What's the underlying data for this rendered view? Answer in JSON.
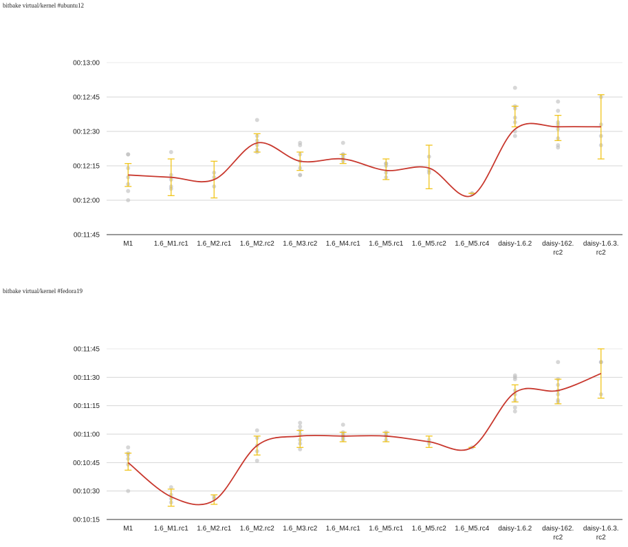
{
  "charts": [
    {
      "title": "bitbake virtual/kernel #ubuntu12"
    },
    {
      "title": "bitbake virtual/kernel #fedora19"
    }
  ],
  "chart_data": [
    {
      "type": "line",
      "title": "bitbake virtual/kernel #ubuntu12",
      "categories": [
        [
          "M1"
        ],
        [
          "1.6_M1.rc1"
        ],
        [
          "1.6_M2.rc1"
        ],
        [
          "1.6_M2.rc2"
        ],
        [
          "1.6_M3.rc2"
        ],
        [
          "1.6_M4.rc1"
        ],
        [
          "1.6_M5.rc1"
        ],
        [
          "1.6_M5.rc2"
        ],
        [
          "1.6_M5.rc4"
        ],
        [
          "daisy-1.6.2"
        ],
        [
          "daisy-162.",
          "rc2"
        ],
        [
          "daisy-1.6.3.",
          "rc2"
        ]
      ],
      "y_ticks": [
        "00:11:45",
        "00:12:00",
        "00:12:15",
        "00:12:30",
        "00:12:45",
        "00:13:00"
      ],
      "ylim": [
        705,
        780
      ],
      "grid": true,
      "series": [
        {
          "type": "line",
          "color": "#c8372d",
          "values": [
            731,
            730,
            729,
            745,
            737,
            738,
            733,
            734,
            722,
            751,
            752,
            752
          ]
        },
        {
          "type": "errorbar",
          "color": "#f0c419",
          "low": [
            726,
            722,
            721,
            741,
            733,
            736,
            729,
            725,
            723,
            752,
            746,
            738
          ],
          "high": [
            736,
            738,
            737,
            749,
            741,
            740,
            738,
            744,
            723,
            761,
            757,
            766
          ]
        },
        {
          "type": "scatter",
          "color": "#bdbdbd",
          "points": [
            [
              0,
              720
            ],
            [
              0,
              724
            ],
            [
              0,
              727
            ],
            [
              0,
              730
            ],
            [
              0,
              734
            ],
            [
              0,
              740
            ],
            [
              0,
              740
            ],
            [
              1,
              725
            ],
            [
              1,
              726
            ],
            [
              1,
              729
            ],
            [
              1,
              731
            ],
            [
              1,
              741
            ],
            [
              2,
              726
            ],
            [
              2,
              730
            ],
            [
              2,
              732
            ],
            [
              3,
              741
            ],
            [
              3,
              742
            ],
            [
              3,
              744
            ],
            [
              3,
              746
            ],
            [
              3,
              748
            ],
            [
              3,
              755
            ],
            [
              4,
              731
            ],
            [
              4,
              731
            ],
            [
              4,
              734
            ],
            [
              4,
              737
            ],
            [
              4,
              740
            ],
            [
              4,
              744
            ],
            [
              4,
              745
            ],
            [
              5,
              737
            ],
            [
              5,
              738
            ],
            [
              5,
              739
            ],
            [
              5,
              740
            ],
            [
              5,
              740
            ],
            [
              5,
              745
            ],
            [
              6,
              730
            ],
            [
              6,
              732
            ],
            [
              6,
              735
            ],
            [
              6,
              736
            ],
            [
              6,
              736
            ],
            [
              7,
              732
            ],
            [
              7,
              733
            ],
            [
              7,
              739
            ],
            [
              8,
              723
            ],
            [
              8,
              723
            ],
            [
              9,
              748
            ],
            [
              9,
              750
            ],
            [
              9,
              754
            ],
            [
              9,
              756
            ],
            [
              9,
              760
            ],
            [
              9,
              761
            ],
            [
              9,
              769
            ],
            [
              10,
              743
            ],
            [
              10,
              744
            ],
            [
              10,
              747
            ],
            [
              10,
              751
            ],
            [
              10,
              753
            ],
            [
              10,
              754
            ],
            [
              10,
              759
            ],
            [
              10,
              763
            ],
            [
              11,
              744
            ],
            [
              11,
              748
            ],
            [
              11,
              753
            ],
            [
              11,
              765
            ]
          ]
        }
      ]
    },
    {
      "type": "line",
      "title": "bitbake virtual/kernel #fedora19",
      "categories": [
        [
          "M1"
        ],
        [
          "1.6_M1.rc1"
        ],
        [
          "1.6_M2.rc1"
        ],
        [
          "1.6_M2.rc2"
        ],
        [
          "1.6_M3.rc2"
        ],
        [
          "1.6_M4.rc1"
        ],
        [
          "1.6_M5.rc1"
        ],
        [
          "1.6_M5.rc2"
        ],
        [
          "1.6_M5.rc4"
        ],
        [
          "daisy-1.6.2"
        ],
        [
          "daisy-162.",
          "rc2"
        ],
        [
          "daisy-1.6.3.",
          "rc2"
        ]
      ],
      "y_ticks": [
        "00:10:15",
        "00:10:30",
        "00:10:45",
        "00:11:00",
        "00:11:15",
        "00:11:30",
        "00:11:45"
      ],
      "ylim": [
        615,
        705
      ],
      "grid": true,
      "series": [
        {
          "type": "line",
          "color": "#c8372d",
          "values": [
            645,
            627,
            625,
            654,
            659,
            659,
            659,
            656,
            653,
            682,
            683,
            692
          ]
        },
        {
          "type": "errorbar",
          "color": "#f0c419",
          "low": [
            641,
            622,
            623,
            649,
            653,
            656,
            656,
            653,
            653,
            677,
            676,
            679
          ],
          "high": [
            650,
            631,
            628,
            659,
            662,
            661,
            661,
            659,
            653,
            686,
            689,
            705
          ]
        },
        {
          "type": "scatter",
          "color": "#bdbdbd",
          "points": [
            [
              0,
              630
            ],
            [
              0,
              644
            ],
            [
              0,
              647
            ],
            [
              0,
              649
            ],
            [
              0,
              650
            ],
            [
              0,
              653
            ],
            [
              1,
              624
            ],
            [
              1,
              626
            ],
            [
              1,
              628
            ],
            [
              1,
              632
            ],
            [
              2,
              626
            ],
            [
              2,
              627
            ],
            [
              3,
              646
            ],
            [
              3,
              651
            ],
            [
              3,
              654
            ],
            [
              3,
              658
            ],
            [
              3,
              662
            ],
            [
              4,
              652
            ],
            [
              4,
              655
            ],
            [
              4,
              657
            ],
            [
              4,
              660
            ],
            [
              4,
              662
            ],
            [
              4,
              664
            ],
            [
              4,
              666
            ],
            [
              5,
              657
            ],
            [
              5,
              658
            ],
            [
              5,
              659
            ],
            [
              5,
              660
            ],
            [
              5,
              661
            ],
            [
              5,
              665
            ],
            [
              6,
              657
            ],
            [
              6,
              659
            ],
            [
              6,
              660
            ],
            [
              6,
              661
            ],
            [
              7,
              655
            ],
            [
              7,
              657
            ],
            [
              8,
              653
            ],
            [
              9,
              672
            ],
            [
              9,
              674
            ],
            [
              9,
              678
            ],
            [
              9,
              681
            ],
            [
              9,
              683
            ],
            [
              9,
              689
            ],
            [
              9,
              690
            ],
            [
              9,
              691
            ],
            [
              10,
              677
            ],
            [
              10,
              678
            ],
            [
              10,
              681
            ],
            [
              10,
              683
            ],
            [
              10,
              686
            ],
            [
              10,
              689
            ],
            [
              10,
              698
            ],
            [
              11,
              681
            ],
            [
              11,
              698
            ],
            [
              11,
              698
            ]
          ]
        }
      ]
    }
  ]
}
